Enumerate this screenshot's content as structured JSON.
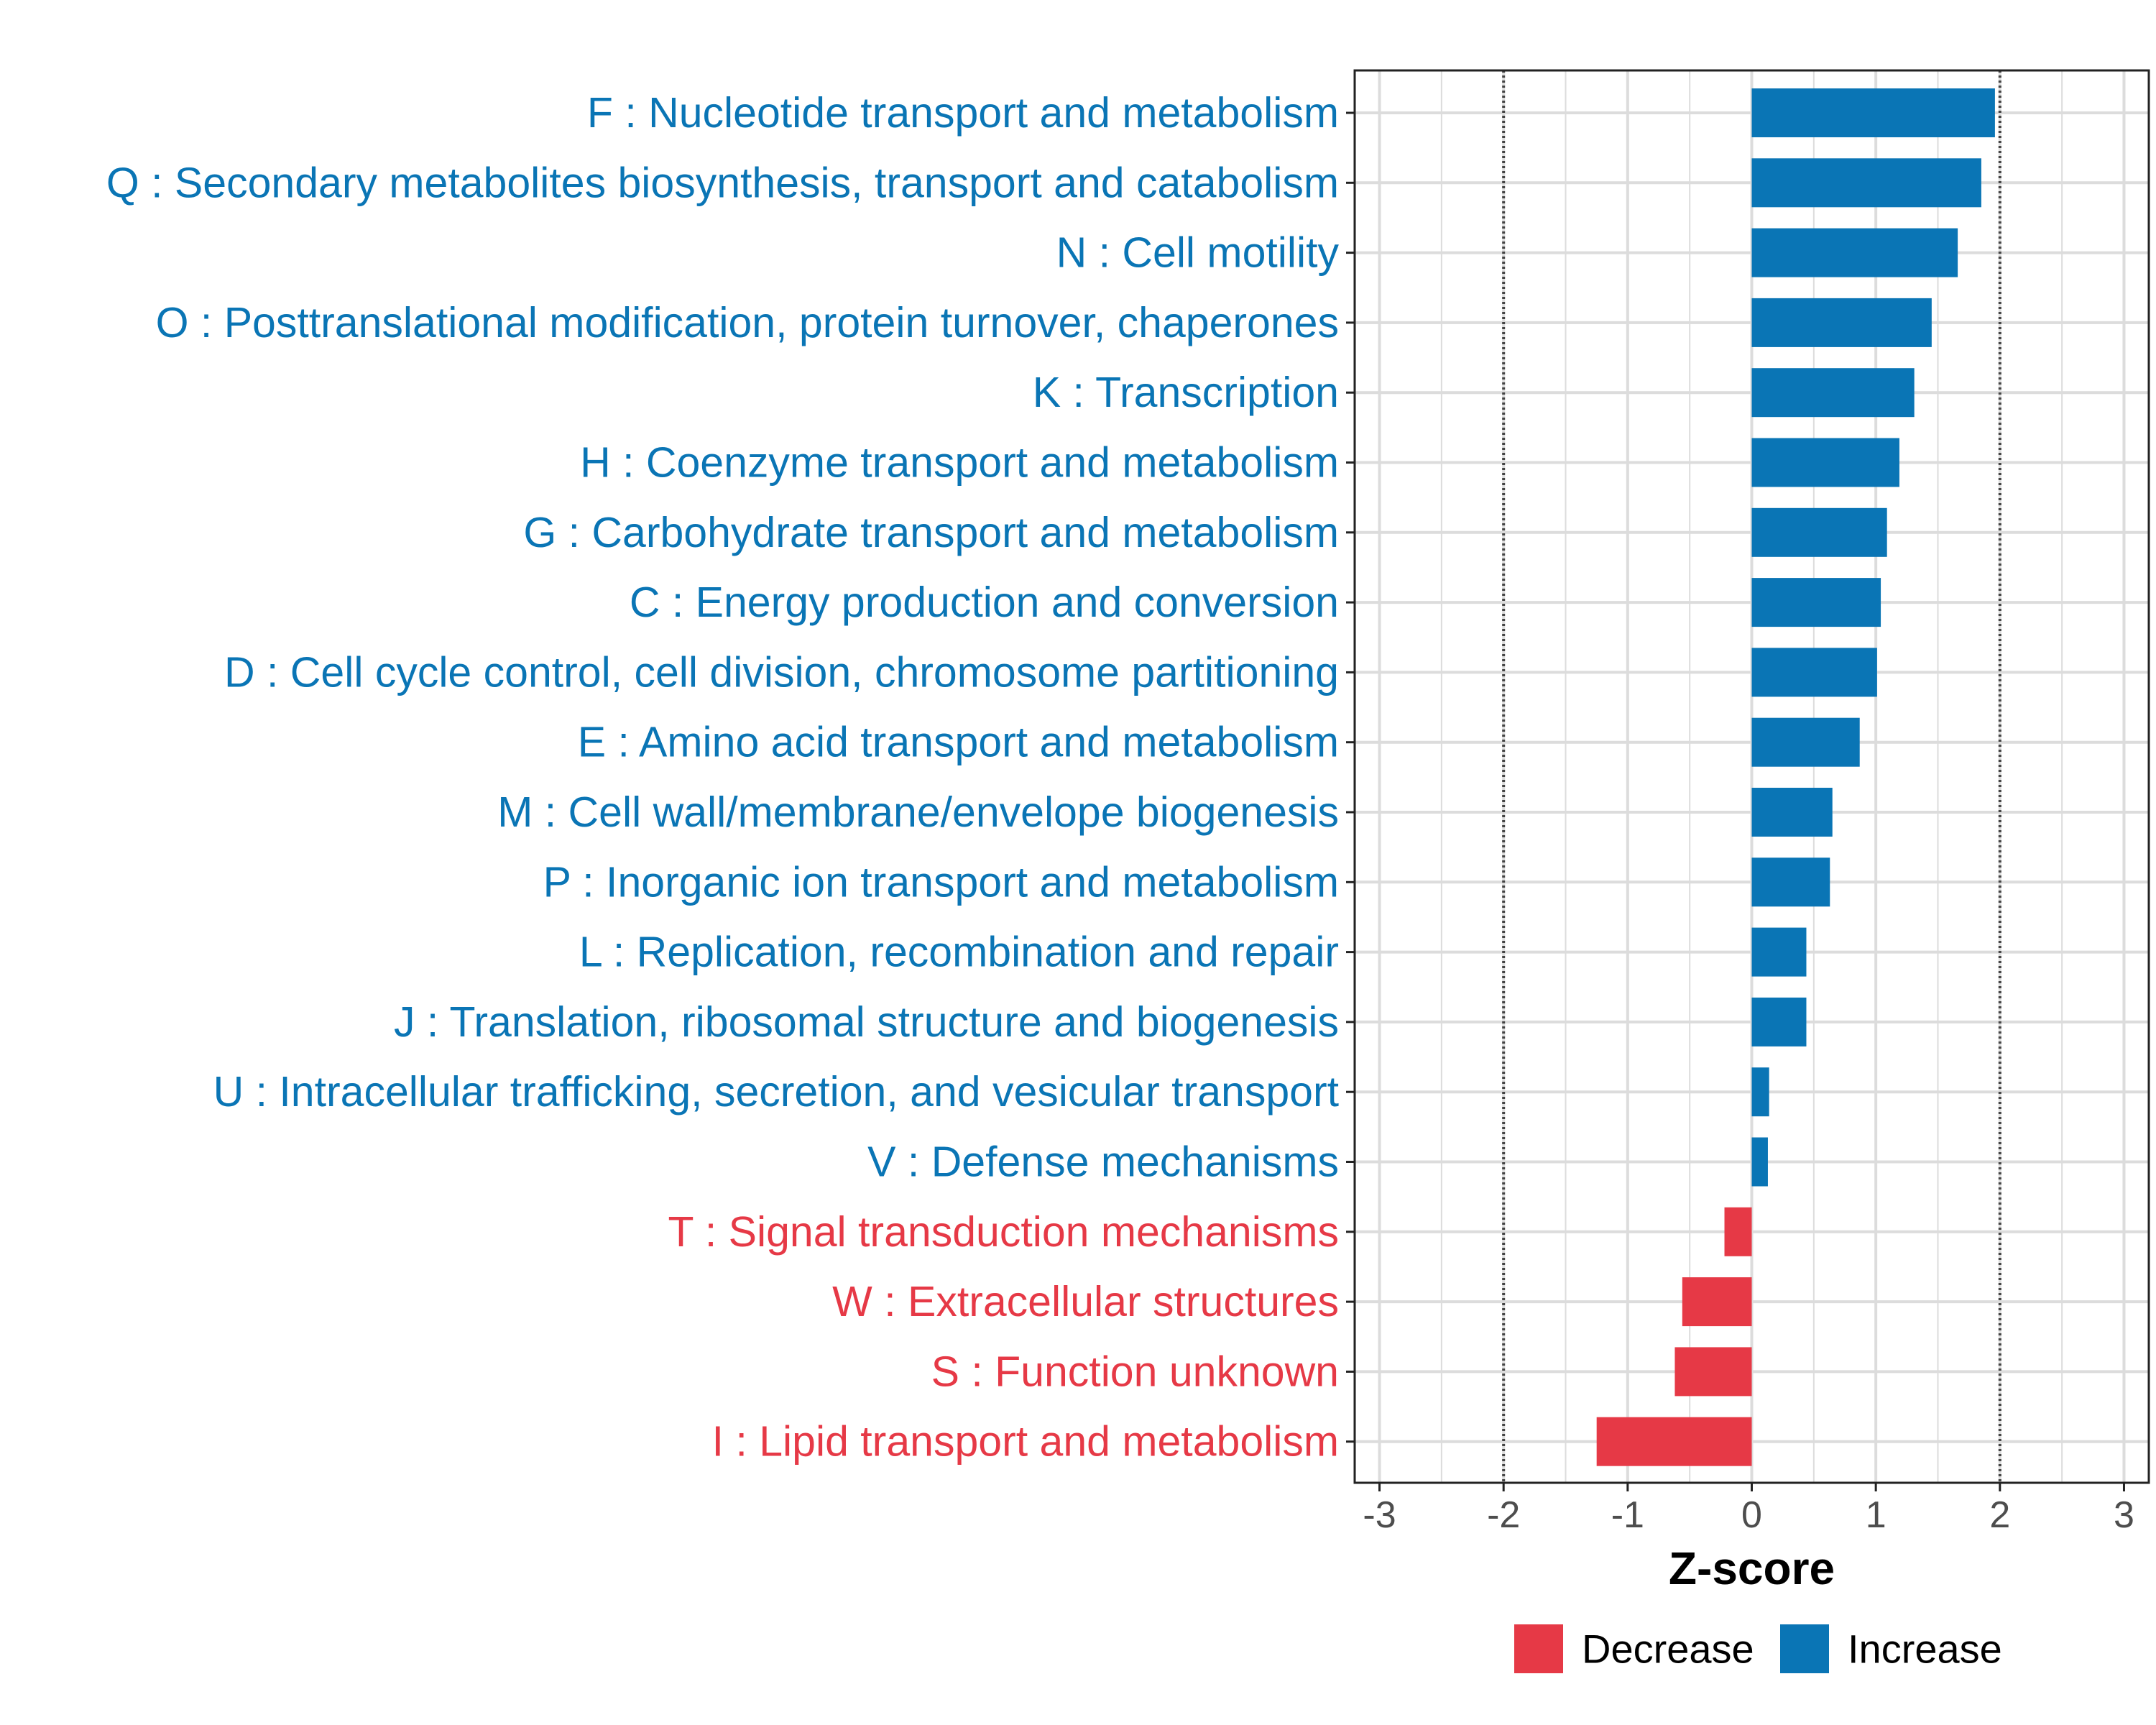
{
  "colors": {
    "increase": "#0a75b5",
    "decrease": "#e63946",
    "grid": "#dcdcdc",
    "reference_line": "#444444",
    "axis": "#222222"
  },
  "chart_data": {
    "type": "bar",
    "orientation": "horizontal",
    "xlabel": "Z-score",
    "ylabel": "",
    "xlim": [
      -3.2,
      3.2
    ],
    "x_ticks": [
      -3,
      -2,
      -1,
      0,
      1,
      2,
      3
    ],
    "x_tick_labels": [
      "-3",
      "-2",
      "-1",
      "0",
      "1",
      "2",
      "3"
    ],
    "reference_lines": [
      -2,
      2
    ],
    "grid": true,
    "legend_position": "bottom",
    "legend": [
      {
        "key": "decrease",
        "label": "Decrease"
      },
      {
        "key": "increase",
        "label": "Increase"
      }
    ],
    "categories": [
      "F : Nucleotide transport and metabolism",
      "Q : Secondary metabolites biosynthesis, transport and catabolism",
      "N : Cell motility",
      "O : Posttranslational modification, protein turnover, chaperones",
      "K : Transcription",
      "H : Coenzyme transport and metabolism",
      "G : Carbohydrate transport and metabolism",
      "C : Energy production and conversion",
      "D : Cell cycle control, cell division, chromosome partitioning",
      "E : Amino acid transport and metabolism",
      "M : Cell wall/membrane/envelope biogenesis",
      "P : Inorganic ion transport and metabolism",
      "L : Replication, recombination and repair",
      "J : Translation, ribosomal structure and biogenesis",
      "U : Intracellular trafficking, secretion, and vesicular transport",
      "V : Defense mechanisms",
      "T : Signal transduction mechanisms",
      "W : Extracellular structures",
      "S : Function unknown",
      "I : Lipid transport and metabolism"
    ],
    "values": [
      1.96,
      1.85,
      1.66,
      1.45,
      1.31,
      1.19,
      1.09,
      1.04,
      1.01,
      0.87,
      0.65,
      0.63,
      0.44,
      0.44,
      0.14,
      0.13,
      -0.22,
      -0.56,
      -0.62,
      -1.25
    ],
    "groups": [
      "increase",
      "increase",
      "increase",
      "increase",
      "increase",
      "increase",
      "increase",
      "increase",
      "increase",
      "increase",
      "increase",
      "increase",
      "increase",
      "increase",
      "increase",
      "increase",
      "decrease",
      "decrease",
      "decrease",
      "decrease"
    ]
  }
}
